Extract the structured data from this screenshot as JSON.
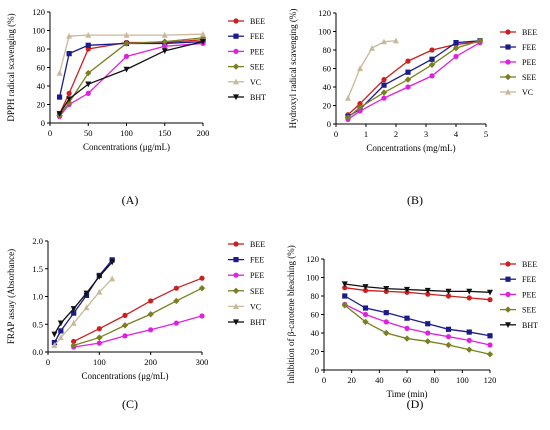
{
  "colors": {
    "BEE": "#cc1f1f",
    "FEE": "#1b1b8c",
    "PEE": "#e020e0",
    "SEE": "#7a8020",
    "VC": "#c9b99a",
    "BHT": "#111111"
  },
  "chart_data": [
    {
      "type": "line",
      "panel_label": "(A)",
      "xlabel": "Concentrations (μg/mL)",
      "ylabel": "DPPH radical scavenging (%)",
      "xlim": [
        0,
        200
      ],
      "ylim": [
        0,
        120
      ],
      "xticks": [
        0,
        50,
        100,
        150,
        200
      ],
      "yticks": [
        0,
        20,
        40,
        60,
        80,
        100,
        120
      ],
      "legend": "right",
      "series": [
        {
          "name": "BEE",
          "x": [
            12.5,
            25,
            50,
            100,
            150,
            200
          ],
          "y": [
            10,
            32,
            80,
            87,
            87,
            90
          ]
        },
        {
          "name": "FEE",
          "x": [
            12.5,
            25,
            50,
            100,
            150,
            200
          ],
          "y": [
            28,
            75,
            84,
            86,
            86,
            88
          ]
        },
        {
          "name": "PEE",
          "x": [
            12.5,
            25,
            50,
            100,
            150,
            200
          ],
          "y": [
            7,
            20,
            32,
            72,
            83,
            86
          ]
        },
        {
          "name": "SEE",
          "x": [
            12.5,
            25,
            50,
            100,
            150,
            200
          ],
          "y": [
            8,
            22,
            54,
            86,
            88,
            92
          ]
        },
        {
          "name": "VC",
          "x": [
            12.5,
            25,
            50,
            100,
            150,
            200
          ],
          "y": [
            54,
            94,
            95,
            95,
            95,
            96
          ]
        },
        {
          "name": "BHT",
          "x": [
            12.5,
            25,
            50,
            100,
            150,
            200
          ],
          "y": [
            10,
            26,
            42,
            58,
            78,
            88
          ]
        }
      ]
    },
    {
      "type": "line",
      "panel_label": "(B)",
      "xlabel": "Concentrations (mg/mL)",
      "ylabel": "Hydroxyl radical scavenging (%)",
      "xlim": [
        0,
        5
      ],
      "ylim": [
        0,
        120
      ],
      "xticks": [
        0,
        1,
        2,
        3,
        4,
        5
      ],
      "yticks": [
        0,
        20,
        40,
        60,
        80,
        100,
        120
      ],
      "legend": "right",
      "series": [
        {
          "name": "BEE",
          "x": [
            0.4,
            0.8,
            1.6,
            2.4,
            3.2,
            4,
            4.8
          ],
          "y": [
            10,
            22,
            48,
            68,
            80,
            86,
            89
          ]
        },
        {
          "name": "FEE",
          "x": [
            0.4,
            0.8,
            1.6,
            2.4,
            3.2,
            4,
            4.8
          ],
          "y": [
            8,
            16,
            42,
            56,
            70,
            88,
            90
          ]
        },
        {
          "name": "PEE",
          "x": [
            0.4,
            0.8,
            1.6,
            2.4,
            3.2,
            4,
            4.8
          ],
          "y": [
            5,
            14,
            28,
            40,
            52,
            73,
            88
          ]
        },
        {
          "name": "SEE",
          "x": [
            0.4,
            0.8,
            1.6,
            2.4,
            3.2,
            4,
            4.8
          ],
          "y": [
            7,
            18,
            34,
            48,
            64,
            82,
            90
          ]
        },
        {
          "name": "VC",
          "x": [
            0.4,
            0.8,
            1.2,
            1.6,
            2
          ],
          "y": [
            28,
            60,
            82,
            89,
            90
          ]
        }
      ]
    },
    {
      "type": "line",
      "panel_label": "(C)",
      "xlabel": "Concentrations (μg/mL)",
      "ylabel": "FRAP assay (Absorbance)",
      "xlim": [
        0,
        300
      ],
      "ylim": [
        0,
        2.0
      ],
      "xticks": [
        0,
        100,
        200,
        300
      ],
      "yticks": [
        0.0,
        0.5,
        1.0,
        1.5,
        2.0
      ],
      "legend": "right",
      "series": [
        {
          "name": "BEE",
          "x": [
            50,
            100,
            150,
            200,
            250,
            300
          ],
          "y": [
            0.19,
            0.42,
            0.66,
            0.92,
            1.15,
            1.33
          ]
        },
        {
          "name": "FEE",
          "x": [
            12.5,
            25,
            50,
            75,
            100,
            125
          ],
          "y": [
            0.17,
            0.38,
            0.7,
            1.02,
            1.38,
            1.66
          ]
        },
        {
          "name": "PEE",
          "x": [
            50,
            100,
            150,
            200,
            250,
            300
          ],
          "y": [
            0.09,
            0.16,
            0.29,
            0.4,
            0.52,
            0.65
          ]
        },
        {
          "name": "SEE",
          "x": [
            50,
            100,
            150,
            200,
            250,
            300
          ],
          "y": [
            0.12,
            0.26,
            0.48,
            0.68,
            0.92,
            1.15
          ]
        },
        {
          "name": "VC",
          "x": [
            12.5,
            25,
            50,
            75,
            100,
            125
          ],
          "y": [
            0.12,
            0.26,
            0.52,
            0.8,
            1.08,
            1.32
          ]
        },
        {
          "name": "BHT",
          "x": [
            12.5,
            25,
            50,
            75,
            100,
            125
          ],
          "y": [
            0.32,
            0.52,
            0.78,
            1.06,
            1.36,
            1.62
          ]
        }
      ]
    },
    {
      "type": "line",
      "panel_label": "(D)",
      "xlabel": "Time (min)",
      "ylabel": "Inhibition of β-carotene bleaching (%)",
      "xlim": [
        0,
        120
      ],
      "ylim": [
        0,
        120
      ],
      "xticks": [
        0,
        20,
        40,
        60,
        80,
        100,
        120
      ],
      "yticks": [
        0,
        20,
        40,
        60,
        80,
        100,
        120
      ],
      "legend": "right",
      "series": [
        {
          "name": "BEE",
          "x": [
            15,
            30,
            45,
            60,
            75,
            90,
            105,
            120
          ],
          "y": [
            89,
            86,
            85,
            84,
            82,
            80,
            78,
            76
          ]
        },
        {
          "name": "FEE",
          "x": [
            15,
            30,
            45,
            60,
            75,
            90,
            105,
            120
          ],
          "y": [
            80,
            67,
            62,
            56,
            50,
            44,
            41,
            37
          ]
        },
        {
          "name": "PEE",
          "x": [
            15,
            30,
            45,
            60,
            75,
            90,
            105,
            120
          ],
          "y": [
            71,
            60,
            52,
            45,
            40,
            36,
            32,
            27
          ]
        },
        {
          "name": "SEE",
          "x": [
            15,
            30,
            45,
            60,
            75,
            90,
            105,
            120
          ],
          "y": [
            70,
            52,
            40,
            34,
            31,
            27,
            22,
            17
          ]
        },
        {
          "name": "BHT",
          "x": [
            15,
            30,
            45,
            60,
            75,
            90,
            105,
            120
          ],
          "y": [
            93,
            90,
            88,
            87,
            86,
            85,
            85,
            84
          ]
        }
      ]
    }
  ]
}
